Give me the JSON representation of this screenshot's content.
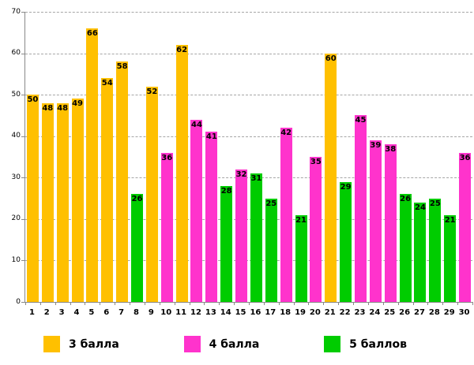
{
  "chart_data": {
    "type": "bar",
    "title": "",
    "xlabel": "",
    "ylabel": "",
    "categories": [
      "1",
      "2",
      "3",
      "4",
      "5",
      "6",
      "7",
      "8",
      "9",
      "10",
      "11",
      "12",
      "13",
      "14",
      "15",
      "16",
      "17",
      "18",
      "19",
      "20",
      "21",
      "22",
      "23",
      "24",
      "25",
      "26",
      "27",
      "28",
      "29",
      "30"
    ],
    "values": [
      50,
      48,
      48,
      49,
      66,
      54,
      58,
      26,
      52,
      36,
      62,
      44,
      41,
      28,
      32,
      31,
      25,
      42,
      21,
      35,
      60,
      29,
      45,
      39,
      38,
      26,
      24,
      25,
      21,
      36
    ],
    "bar_series": [
      "3 балла",
      "3 балла",
      "3 балла",
      "3 балла",
      "3 балла",
      "3 балла",
      "3 балла",
      "5 баллов",
      "3 балла",
      "4 балла",
      "3 балла",
      "4 балла",
      "4 балла",
      "5 баллов",
      "4 балла",
      "5 баллов",
      "5 баллов",
      "4 балла",
      "5 баллов",
      "4 балла",
      "3 балла",
      "5 баллов",
      "4 балла",
      "4 балла",
      "4 балла",
      "5 баллов",
      "5 баллов",
      "5 баллов",
      "5 баллов",
      "4 балла"
    ],
    "series_colors": {
      "3 балла": "#FFC000",
      "4 балла": "#FF33CC",
      "5 баллов": "#00CC00"
    },
    "value_labels": "inside-end, bold black",
    "ylim": [
      0,
      70
    ],
    "yticks": [
      0,
      10,
      20,
      30,
      40,
      50,
      60,
      70
    ],
    "grid": "horizontal dashed gray",
    "legend": {
      "position": "bottom",
      "entries": [
        {
          "label": "3 балла",
          "color": "#FFC000"
        },
        {
          "label": "4 балла",
          "color": "#FF33CC"
        },
        {
          "label": "5 баллов",
          "color": "#00CC00"
        }
      ]
    }
  }
}
